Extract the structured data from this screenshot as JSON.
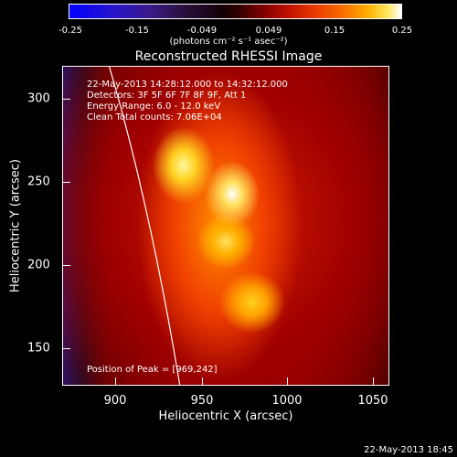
{
  "colorbar": {
    "ticks": [
      "-0.25",
      "-0.15",
      "-0.049",
      "0.049",
      "0.15",
      "0.25"
    ],
    "units": "(photons cm⁻² s⁻¹ asec⁻²)"
  },
  "title": "Reconstructed RHESSI Image",
  "info": {
    "time": "22-May-2013 14:28:12.000 to 14:32:12.000",
    "detectors": "Detectors: 3F 5F 6F 7F 8F 9F, Att 1",
    "energy": "Energy Range: 6.0 - 12.0 keV",
    "clean": "Clean    Total counts: 7.06E+04"
  },
  "peak": "Position of Peak = [969,242]",
  "axes": {
    "xlabel": "Heliocentric X (arcsec)",
    "ylabel": "Heliocentric Y (arcsec)",
    "xticks": [
      "900",
      "950",
      "1000",
      "1050"
    ],
    "yticks": [
      "300",
      "250",
      "200",
      "150"
    ]
  },
  "stamp": "22-May-2013 18:45"
}
